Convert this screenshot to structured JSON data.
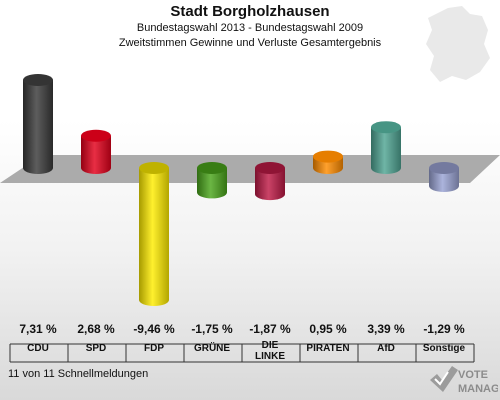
{
  "header": {
    "title": "Stadt Borgholzhausen",
    "subtitle": "Bundestagswahl 2013 - Bundestagswahl 2009",
    "description": "Zweitstimmen Gewinne und Verluste Gesamtergebnis"
  },
  "footer": {
    "status": "11 von 11 Schnellmeldungen"
  },
  "logo": {
    "line1": "VOTE",
    "line2": "MANAGER"
  },
  "chart_data": {
    "type": "bar",
    "categories": [
      "CDU",
      "SPD",
      "FDP",
      "GRÜNE",
      "DIE LINKE",
      "PIRATEN",
      "AfD",
      "Sonstige"
    ],
    "values": [
      7.31,
      2.68,
      -9.46,
      -1.75,
      -1.87,
      0.95,
      3.39,
      -1.29
    ],
    "value_labels": [
      "7,31 %",
      "2,68 %",
      "-9,46 %",
      "-1,75 %",
      "-1,87 %",
      "0,95 %",
      "3,39 %",
      "-1,29 %"
    ],
    "colors": [
      "#3a3a3a",
      "#e3001b",
      "#ffed00",
      "#4aa61b",
      "#be1a46",
      "#ff8c00",
      "#4fa593",
      "#9aa3d4"
    ],
    "ylim": [
      -9.46,
      7.31
    ],
    "grid": false,
    "legend": "none"
  }
}
